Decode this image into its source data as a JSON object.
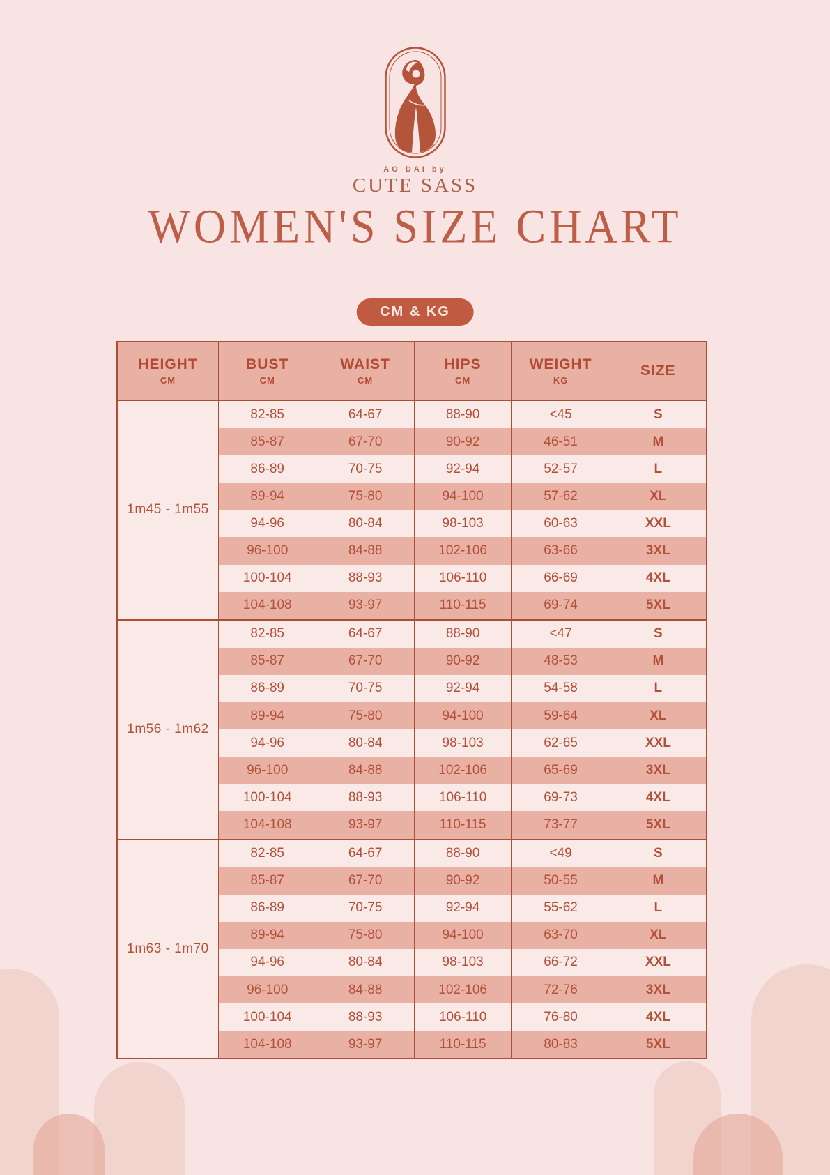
{
  "brand": {
    "tagline": "AO DAI by",
    "name": "CUTE SASS",
    "logo_icon": "woman-in-ao-dai-oval-emblem"
  },
  "title": "WOMEN'S SIZE CHART",
  "badge": "CM & KG",
  "colors": {
    "page_bg": "#f8e4e2",
    "accent_terracotta": "#b4543b",
    "title_text": "#bd5f48",
    "salmon_row": "#e9b1a4",
    "light_row": "#f9eae8",
    "badge_bg": "#c05a40",
    "badge_text": "#f8e7e1",
    "cell_text": "#b2513a"
  },
  "table": {
    "columns": [
      {
        "label": "HEIGHT",
        "unit": "CM"
      },
      {
        "label": "BUST",
        "unit": "CM"
      },
      {
        "label": "WAIST",
        "unit": "CM"
      },
      {
        "label": "HIPS",
        "unit": "CM"
      },
      {
        "label": "WEIGHT",
        "unit": "KG"
      },
      {
        "label": "SIZE",
        "unit": ""
      }
    ],
    "groups": [
      {
        "height": "1m45 - 1m55",
        "rows": [
          {
            "bust": "82-85",
            "waist": "64-67",
            "hips": "88-90",
            "weight": "<45",
            "size": "S"
          },
          {
            "bust": "85-87",
            "waist": "67-70",
            "hips": "90-92",
            "weight": "46-51",
            "size": "M"
          },
          {
            "bust": "86-89",
            "waist": "70-75",
            "hips": "92-94",
            "weight": "52-57",
            "size": "L"
          },
          {
            "bust": "89-94",
            "waist": "75-80",
            "hips": "94-100",
            "weight": "57-62",
            "size": "XL"
          },
          {
            "bust": "94-96",
            "waist": "80-84",
            "hips": "98-103",
            "weight": "60-63",
            "size": "XXL"
          },
          {
            "bust": "96-100",
            "waist": "84-88",
            "hips": "102-106",
            "weight": "63-66",
            "size": "3XL"
          },
          {
            "bust": "100-104",
            "waist": "88-93",
            "hips": "106-110",
            "weight": "66-69",
            "size": "4XL"
          },
          {
            "bust": "104-108",
            "waist": "93-97",
            "hips": "110-115",
            "weight": "69-74",
            "size": "5XL"
          }
        ]
      },
      {
        "height": "1m56 - 1m62",
        "rows": [
          {
            "bust": "82-85",
            "waist": "64-67",
            "hips": "88-90",
            "weight": "<47",
            "size": "S"
          },
          {
            "bust": "85-87",
            "waist": "67-70",
            "hips": "90-92",
            "weight": "48-53",
            "size": "M"
          },
          {
            "bust": "86-89",
            "waist": "70-75",
            "hips": "92-94",
            "weight": "54-58",
            "size": "L"
          },
          {
            "bust": "89-94",
            "waist": "75-80",
            "hips": "94-100",
            "weight": "59-64",
            "size": "XL"
          },
          {
            "bust": "94-96",
            "waist": "80-84",
            "hips": "98-103",
            "weight": "62-65",
            "size": "XXL"
          },
          {
            "bust": "96-100",
            "waist": "84-88",
            "hips": "102-106",
            "weight": "65-69",
            "size": "3XL"
          },
          {
            "bust": "100-104",
            "waist": "88-93",
            "hips": "106-110",
            "weight": "69-73",
            "size": "4XL"
          },
          {
            "bust": "104-108",
            "waist": "93-97",
            "hips": "110-115",
            "weight": "73-77",
            "size": "5XL"
          }
        ]
      },
      {
        "height": "1m63 - 1m70",
        "rows": [
          {
            "bust": "82-85",
            "waist": "64-67",
            "hips": "88-90",
            "weight": "<49",
            "size": "S"
          },
          {
            "bust": "85-87",
            "waist": "67-70",
            "hips": "90-92",
            "weight": "50-55",
            "size": "M"
          },
          {
            "bust": "86-89",
            "waist": "70-75",
            "hips": "92-94",
            "weight": "55-62",
            "size": "L"
          },
          {
            "bust": "89-94",
            "waist": "75-80",
            "hips": "94-100",
            "weight": "63-70",
            "size": "XL"
          },
          {
            "bust": "94-96",
            "waist": "80-84",
            "hips": "98-103",
            "weight": "66-72",
            "size": "XXL"
          },
          {
            "bust": "96-100",
            "waist": "84-88",
            "hips": "102-106",
            "weight": "72-76",
            "size": "3XL"
          },
          {
            "bust": "100-104",
            "waist": "88-93",
            "hips": "106-110",
            "weight": "76-80",
            "size": "4XL"
          },
          {
            "bust": "104-108",
            "waist": "93-97",
            "hips": "110-115",
            "weight": "80-83",
            "size": "5XL"
          }
        ]
      }
    ]
  }
}
